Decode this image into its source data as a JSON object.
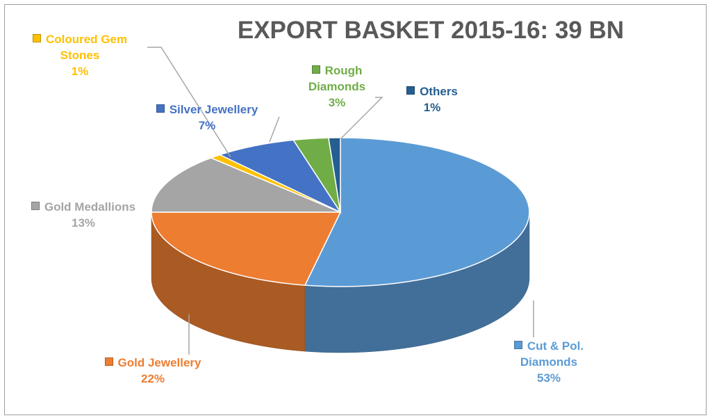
{
  "chart_data": {
    "type": "pie",
    "title": "EXPORT BASKET 2015-16: 39 BN",
    "categories": [
      "Cut & Pol. Diamonds",
      "Gold Jewellery",
      "Gold Medallions",
      "Coloured Gem Stones",
      "Silver Jewellery",
      "Rough Diamonds",
      "Others"
    ],
    "values": [
      53,
      22,
      13,
      1,
      7,
      3,
      1
    ],
    "value_labels": [
      "53%",
      "22%",
      "13%",
      "1%",
      "7%",
      "3%",
      "1%"
    ],
    "colors": [
      "#5b9bd5",
      "#ed7d31",
      "#a5a5a5",
      "#ffc000",
      "#4472c4",
      "#70ad47",
      "#255e91"
    ]
  }
}
